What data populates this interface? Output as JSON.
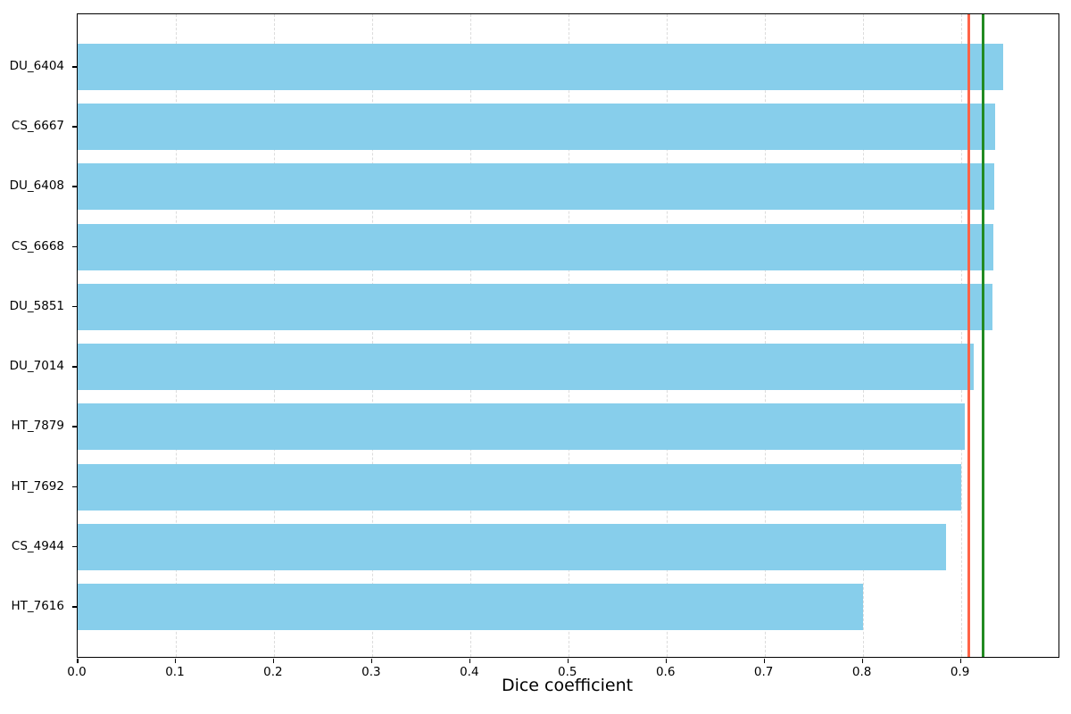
{
  "chart_data": {
    "type": "bar",
    "orientation": "horizontal",
    "title": "",
    "xlabel": "Dice coefficient",
    "ylabel": "",
    "categories": [
      "DU_6404",
      "CS_6667",
      "DU_6408",
      "CS_6668",
      "DU_5851",
      "DU_7014",
      "HT_7879",
      "HT_7692",
      "CS_4944",
      "HT_7616"
    ],
    "values": [
      0.943,
      0.935,
      0.934,
      0.933,
      0.932,
      0.913,
      0.904,
      0.9,
      0.885,
      0.8
    ],
    "x_tick_values": [
      0.0,
      0.1,
      0.2,
      0.3,
      0.4,
      0.5,
      0.6,
      0.7,
      0.8,
      0.9
    ],
    "x_tick_labels": [
      "0.0",
      "0.1",
      "0.2",
      "0.3",
      "0.4",
      "0.5",
      "0.6",
      "0.7",
      "0.8",
      "0.9"
    ],
    "xlim": [
      0,
      0.9995
    ],
    "grid": {
      "axis": "x",
      "style": "dashed",
      "color": "#dcdcdc"
    },
    "legend": "none",
    "bar_color": "#87CEEB",
    "reference_lines": [
      {
        "value": 0.908,
        "color": "#FF6347"
      },
      {
        "value": 0.9225,
        "color": "#228B22"
      }
    ]
  }
}
